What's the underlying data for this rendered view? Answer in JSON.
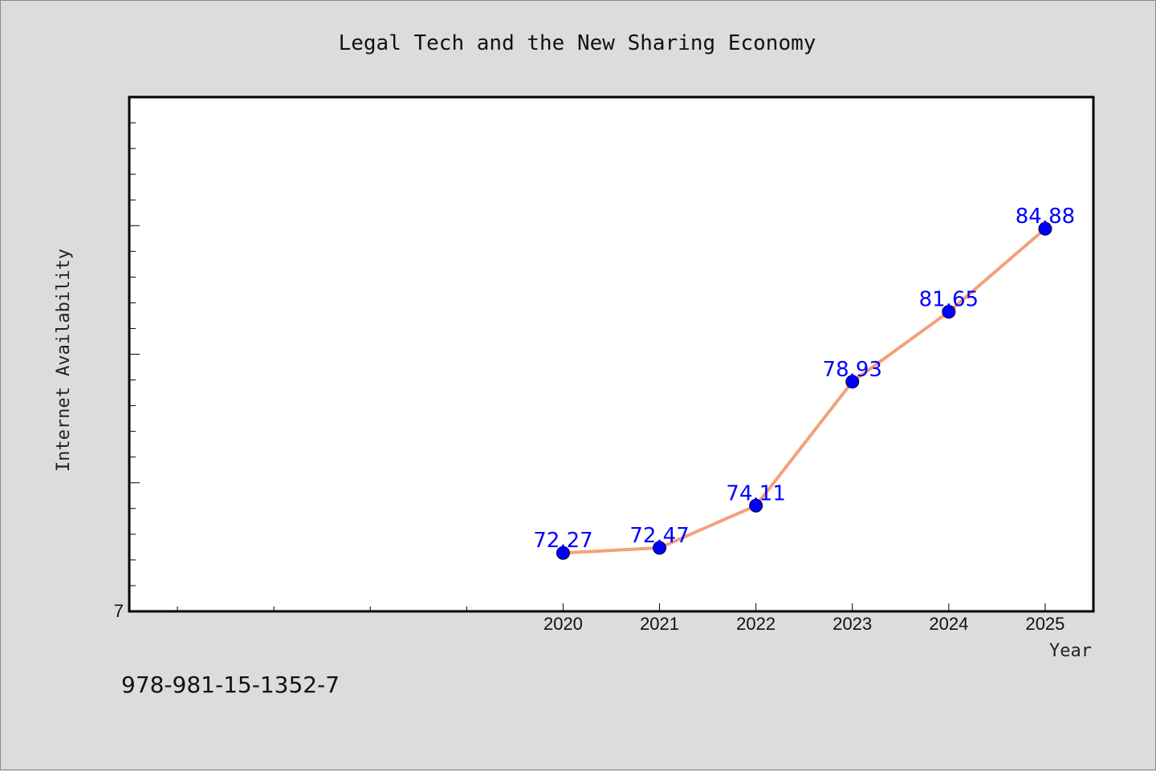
{
  "colors": {
    "background": "#dcdcdc",
    "plot_background": "#ffffff",
    "line": "#f4a07a",
    "marker": "#0000ff",
    "label": "#0000ff"
  },
  "footnote": "978-981-15-1352-7",
  "chart_data": {
    "type": "line",
    "title": "Legal Tech and the New Sharing Economy",
    "xlabel": "Year",
    "ylabel": "Internet Availability",
    "x": [
      2020,
      2021,
      2022,
      2023,
      2024,
      2025
    ],
    "values": [
      72.27,
      72.47,
      74.11,
      78.93,
      81.65,
      84.88
    ],
    "data_labels": [
      "72.27",
      "72.47",
      "74.11",
      "78.93",
      "81.65",
      "84.88"
    ],
    "x_tick_labels": [
      "2020",
      "2021",
      "2022",
      "2023",
      "2024",
      "2025"
    ],
    "xlim": [
      2015.5,
      2025.5
    ],
    "ylim": [
      70,
      90
    ],
    "y_tick_labels": [
      "7"
    ],
    "grid": false,
    "legend": "none"
  }
}
